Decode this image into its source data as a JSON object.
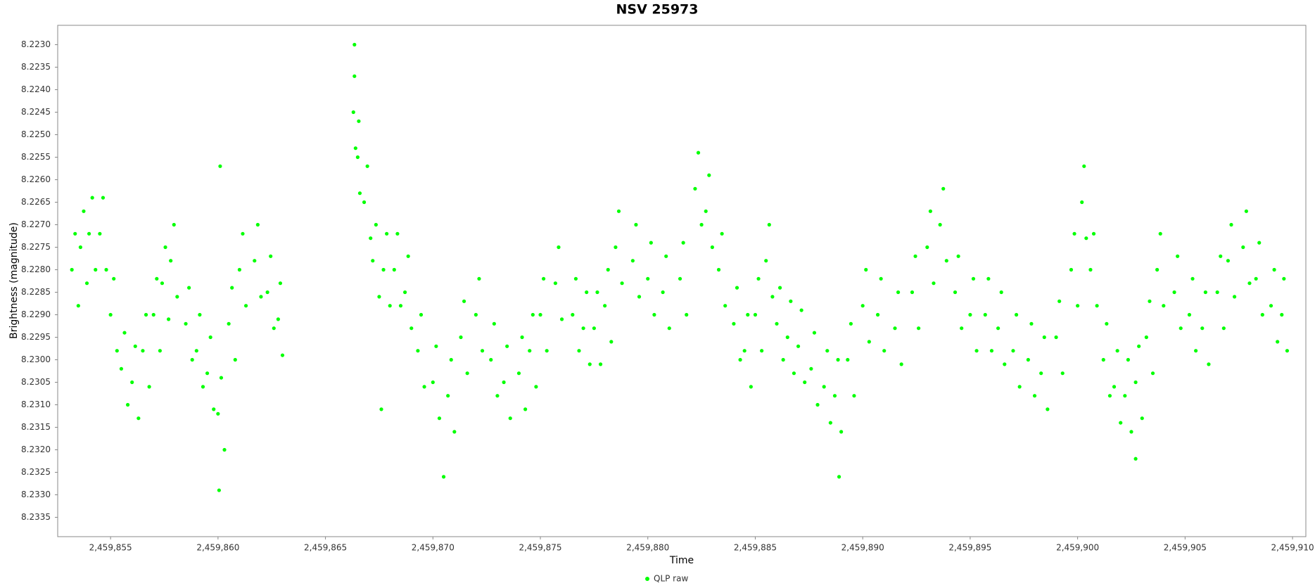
{
  "chart_data": {
    "type": "scatter",
    "title": "NSV 25973",
    "x_label": "Time",
    "y_label": "Brightness (magnitude)",
    "xlim": [
      2459852.54,
      2459910.62
    ],
    "xticks": [
      {
        "value": 2459855,
        "label": "2,459,855"
      },
      {
        "value": 2459860,
        "label": "2,459,860"
      },
      {
        "value": 2459865,
        "label": "2,459,865"
      },
      {
        "value": 2459870,
        "label": "2,459,870"
      },
      {
        "value": 2459875,
        "label": "2,459,875"
      },
      {
        "value": 2459880,
        "label": "2,459,880"
      },
      {
        "value": 2459885,
        "label": "2,459,885"
      },
      {
        "value": 2459890,
        "label": "2,459,890"
      },
      {
        "value": 2459895,
        "label": "2,459,895"
      },
      {
        "value": 2459900,
        "label": "2,459,900"
      },
      {
        "value": 2459905,
        "label": "2,459,905"
      },
      {
        "value": 2459910,
        "label": "2,459,910"
      }
    ],
    "ylim": [
      8.22257,
      8.23393
    ],
    "y_inverted": true,
    "yticks": [
      {
        "value": 8.223,
        "label": "8.2230"
      },
      8.2235,
      {
        "value": 8.224,
        "label": "8.2240"
      },
      8.2245,
      {
        "value": 8.225,
        "label": "8.2250"
      },
      8.2255,
      {
        "value": 8.226,
        "label": "8.2260"
      },
      8.2265,
      {
        "value": 8.227,
        "label": "8.2270"
      },
      8.2275,
      {
        "value": 8.228,
        "label": "8.2280"
      },
      8.2285,
      {
        "value": 8.229,
        "label": "8.2290"
      },
      8.2295,
      {
        "value": 8.23,
        "label": "8.2300"
      },
      8.2305,
      {
        "value": 8.231,
        "label": "8.2310"
      },
      8.2315,
      {
        "value": 8.232,
        "label": "8.2320"
      },
      8.2325,
      {
        "value": 8.233,
        "label": "8.2330"
      },
      8.2335
    ],
    "grid": false,
    "legend": "bottom",
    "x": [
      2459853.2,
      2459853.35,
      2459853.5,
      2459853.6,
      2459853.75,
      2459853.9,
      2459854.0,
      2459854.15,
      2459854.3,
      2459854.5,
      2459854.65,
      2459854.8,
      2459855.0,
      2459855.15,
      2459855.3,
      2459855.5,
      2459855.65,
      2459855.8,
      2459856.0,
      2459856.15,
      2459856.3,
      2459856.5,
      2459856.65,
      2459856.8,
      2459857.0,
      2459857.15,
      2459857.3,
      2459857.4,
      2459857.55,
      2459857.7,
      2459857.8,
      2459857.95,
      2459858.1,
      2459858.5,
      2459858.65,
      2459858.8,
      2459859.0,
      2459859.15,
      2459859.3,
      2459859.5,
      2459859.65,
      2459859.8,
      2459860.0,
      2459860.15,
      2459860.3,
      2459860.5,
      2459860.65,
      2459860.8,
      2459861.0,
      2459861.15,
      2459861.3,
      2459861.7,
      2459861.85,
      2459862.0,
      2459862.3,
      2459862.45,
      2459862.6,
      2459862.8,
      2459862.9,
      2459863.0,
      2459866.3,
      2459866.35,
      2459866.4,
      2459866.5,
      2459866.55,
      2459866.6,
      2459866.8,
      2459866.95,
      2459867.1,
      2459867.2,
      2459867.35,
      2459867.5,
      2459867.7,
      2459867.85,
      2459868.0,
      2459868.2,
      2459868.35,
      2459868.5,
      2459868.7,
      2459868.85,
      2459869.0,
      2459869.3,
      2459869.45,
      2459869.6,
      2459870.0,
      2459870.15,
      2459870.3,
      2459870.7,
      2459870.85,
      2459871.0,
      2459871.3,
      2459871.45,
      2459871.6,
      2459872.0,
      2459872.15,
      2459872.3,
      2459872.7,
      2459872.85,
      2459873.0,
      2459873.3,
      2459873.45,
      2459873.6,
      2459874.0,
      2459874.15,
      2459874.3,
      2459874.5,
      2459874.65,
      2459874.8,
      2459875.0,
      2459875.15,
      2459875.3,
      2459875.7,
      2459875.85,
      2459876.0,
      2459876.5,
      2459876.65,
      2459876.8,
      2459877.0,
      2459877.15,
      2459877.3,
      2459877.5,
      2459877.65,
      2459877.8,
      2459878.0,
      2459878.15,
      2459878.3,
      2459878.5,
      2459878.65,
      2459878.8,
      2459879.3,
      2459879.45,
      2459879.6,
      2459880.0,
      2459880.15,
      2459880.3,
      2459880.7,
      2459880.85,
      2459881.0,
      2459881.5,
      2459881.65,
      2459881.8,
      2459882.2,
      2459882.35,
      2459882.5,
      2459882.7,
      2459882.85,
      2459883.0,
      2459883.3,
      2459883.45,
      2459883.6,
      2459884.0,
      2459884.15,
      2459884.3,
      2459884.5,
      2459884.65,
      2459884.8,
      2459885.0,
      2459885.15,
      2459885.3,
      2459885.5,
      2459885.65,
      2459885.8,
      2459886.0,
      2459886.15,
      2459886.3,
      2459886.5,
      2459886.65,
      2459886.8,
      2459887.0,
      2459887.15,
      2459887.3,
      2459887.6,
      2459887.75,
      2459887.9,
      2459888.2,
      2459888.35,
      2459888.5,
      2459888.7,
      2459888.85,
      2459889.0,
      2459889.3,
      2459889.45,
      2459889.6,
      2459890.0,
      2459890.15,
      2459890.3,
      2459890.7,
      2459890.85,
      2459891.0,
      2459891.5,
      2459891.65,
      2459891.8,
      2459892.3,
      2459892.45,
      2459892.6,
      2459893.0,
      2459893.15,
      2459893.3,
      2459893.6,
      2459893.75,
      2459893.9,
      2459894.3,
      2459894.45,
      2459894.6,
      2459895.0,
      2459895.15,
      2459895.3,
      2459895.7,
      2459895.85,
      2459896.0,
      2459896.3,
      2459896.45,
      2459896.6,
      2459897.0,
      2459897.15,
      2459897.3,
      2459897.7,
      2459897.85,
      2459898.0,
      2459898.3,
      2459898.45,
      2459898.6,
      2459899.0,
      2459899.15,
      2459899.3,
      2459899.7,
      2459899.85,
      2459900.0,
      2459900.2,
      2459900.3,
      2459900.4,
      2459900.6,
      2459900.75,
      2459900.9,
      2459901.2,
      2459901.35,
      2459901.5,
      2459901.7,
      2459901.85,
      2459902.0,
      2459902.2,
      2459902.35,
      2459902.5,
      2459902.7,
      2459902.85,
      2459903.0,
      2459903.2,
      2459903.35,
      2459903.5,
      2459903.7,
      2459903.85,
      2459904.0,
      2459904.5,
      2459904.65,
      2459904.8,
      2459905.2,
      2459905.35,
      2459905.5,
      2459905.8,
      2459905.95,
      2459906.1,
      2459906.5,
      2459906.65,
      2459906.8,
      2459907.0,
      2459907.15,
      2459907.3,
      2459907.7,
      2459907.85,
      2459908.0,
      2459908.3,
      2459908.45,
      2459908.6,
      2459909.0,
      2459909.15,
      2459909.3,
      2459909.5,
      2459909.6,
      2459909.75,
      2459866.35,
      2459860.05,
      2459860.1,
      2459867.6,
      2459870.5,
      2459888.9,
      2459902.7
    ],
    "series": [
      {
        "name": "QLP raw",
        "color": "#00ff00",
        "values": [
          8.228,
          8.2272,
          8.2288,
          8.2275,
          8.2267,
          8.2283,
          8.2272,
          8.2264,
          8.228,
          8.2272,
          8.2264,
          8.228,
          8.229,
          8.2282,
          8.2298,
          8.2302,
          8.2294,
          8.231,
          8.2305,
          8.2297,
          8.2313,
          8.2298,
          8.229,
          8.2306,
          8.229,
          8.2282,
          8.2298,
          8.2283,
          8.2275,
          8.2291,
          8.2278,
          8.227,
          8.2286,
          8.2292,
          8.2284,
          8.23,
          8.2298,
          8.229,
          8.2306,
          8.2303,
          8.2295,
          8.2311,
          8.2312,
          8.2304,
          8.232,
          8.2292,
          8.2284,
          8.23,
          8.228,
          8.2272,
          8.2288,
          8.2278,
          8.227,
          8.2286,
          8.2285,
          8.2277,
          8.2293,
          8.2291,
          8.2283,
          8.2299,
          8.2245,
          8.2237,
          8.2253,
          8.2255,
          8.2247,
          8.2263,
          8.2265,
          8.2257,
          8.2273,
          8.2278,
          8.227,
          8.2286,
          8.228,
          8.2272,
          8.2288,
          8.228,
          8.2272,
          8.2288,
          8.2285,
          8.2277,
          8.2293,
          8.2298,
          8.229,
          8.2306,
          8.2305,
          8.2297,
          8.2313,
          8.2308,
          8.23,
          8.2316,
          8.2295,
          8.2287,
          8.2303,
          8.229,
          8.2282,
          8.2298,
          8.23,
          8.2292,
          8.2308,
          8.2305,
          8.2297,
          8.2313,
          8.2303,
          8.2295,
          8.2311,
          8.2298,
          8.229,
          8.2306,
          8.229,
          8.2282,
          8.2298,
          8.2283,
          8.2275,
          8.2291,
          8.229,
          8.2282,
          8.2298,
          8.2293,
          8.2285,
          8.2301,
          8.2293,
          8.2285,
          8.2301,
          8.2288,
          8.228,
          8.2296,
          8.2275,
          8.2267,
          8.2283,
          8.2278,
          8.227,
          8.2286,
          8.2282,
          8.2274,
          8.229,
          8.2285,
          8.2277,
          8.2293,
          8.2282,
          8.2274,
          8.229,
          8.2262,
          8.2254,
          8.227,
          8.2267,
          8.2259,
          8.2275,
          8.228,
          8.2272,
          8.2288,
          8.2292,
          8.2284,
          8.23,
          8.2298,
          8.229,
          8.2306,
          8.229,
          8.2282,
          8.2298,
          8.2278,
          8.227,
          8.2286,
          8.2292,
          8.2284,
          8.23,
          8.2295,
          8.2287,
          8.2303,
          8.2297,
          8.2289,
          8.2305,
          8.2302,
          8.2294,
          8.231,
          8.2306,
          8.2298,
          8.2314,
          8.2308,
          8.23,
          8.2316,
          8.23,
          8.2292,
          8.2308,
          8.2288,
          8.228,
          8.2296,
          8.229,
          8.2282,
          8.2298,
          8.2293,
          8.2285,
          8.2301,
          8.2285,
          8.2277,
          8.2293,
          8.2275,
          8.2267,
          8.2283,
          8.227,
          8.2262,
          8.2278,
          8.2285,
          8.2277,
          8.2293,
          8.229,
          8.2282,
          8.2298,
          8.229,
          8.2282,
          8.2298,
          8.2293,
          8.2285,
          8.2301,
          8.2298,
          8.229,
          8.2306,
          8.23,
          8.2292,
          8.2308,
          8.2303,
          8.2295,
          8.2311,
          8.2295,
          8.2287,
          8.2303,
          8.228,
          8.2272,
          8.2288,
          8.2265,
          8.2257,
          8.2273,
          8.228,
          8.2272,
          8.2288,
          8.23,
          8.2292,
          8.2308,
          8.2306,
          8.2298,
          8.2314,
          8.2308,
          8.23,
          8.2316,
          8.2305,
          8.2297,
          8.2313,
          8.2295,
          8.2287,
          8.2303,
          8.228,
          8.2272,
          8.2288,
          8.2285,
          8.2277,
          8.2293,
          8.229,
          8.2282,
          8.2298,
          8.2293,
          8.2285,
          8.2301,
          8.2285,
          8.2277,
          8.2293,
          8.2278,
          8.227,
          8.2286,
          8.2275,
          8.2267,
          8.2283,
          8.2282,
          8.2274,
          8.229,
          8.2288,
          8.228,
          8.2296,
          8.229,
          8.2282,
          8.2298,
          8.223,
          8.2329,
          8.2257,
          8.2311,
          8.2326,
          8.2326,
          8.2322
        ]
      }
    ]
  }
}
